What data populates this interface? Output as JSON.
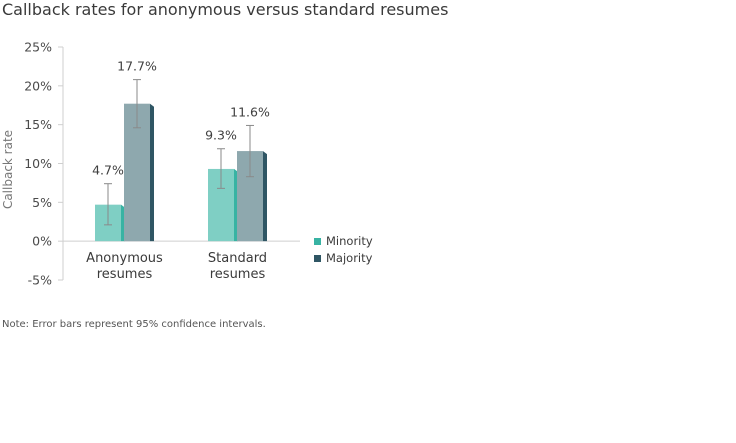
{
  "title": "Callback rates for anonymous versus standard resumes",
  "note": "Note: Error bars represent 95% confidence intervals.",
  "chart_data": {
    "type": "bar",
    "title": "Callback rates for anonymous versus standard resumes",
    "ylabel": "Callback rate",
    "xlabel": "",
    "categories": [
      "Anonymous resumes",
      "Standard resumes"
    ],
    "category_lines": [
      [
        "Anonymous",
        "resumes"
      ],
      [
        "Standard",
        "resumes"
      ]
    ],
    "ylim": [
      -5,
      25
    ],
    "yticks": [
      25,
      20,
      15,
      10,
      5,
      0,
      -5
    ],
    "ytick_labels": [
      "25%",
      "20%",
      "15%",
      "10%",
      "5%",
      "0%",
      "-5%"
    ],
    "legend_position": "right",
    "grid": false,
    "series": [
      {
        "name": "Minority",
        "color": "#7fcfc4",
        "side_color": "#38b3a3",
        "values": [
          4.7,
          9.3
        ],
        "error_low": [
          2.1,
          6.8
        ],
        "error_high": [
          7.4,
          11.9
        ],
        "value_labels": [
          "4.7%",
          "9.3%"
        ]
      },
      {
        "name": "Majority",
        "color": "#8ea8ae",
        "side_color": "#2f5664",
        "values": [
          17.7,
          11.6
        ],
        "error_low": [
          14.6,
          8.3
        ],
        "error_high": [
          20.8,
          14.9
        ],
        "value_labels": [
          "17.7%",
          "11.6%"
        ]
      }
    ]
  }
}
